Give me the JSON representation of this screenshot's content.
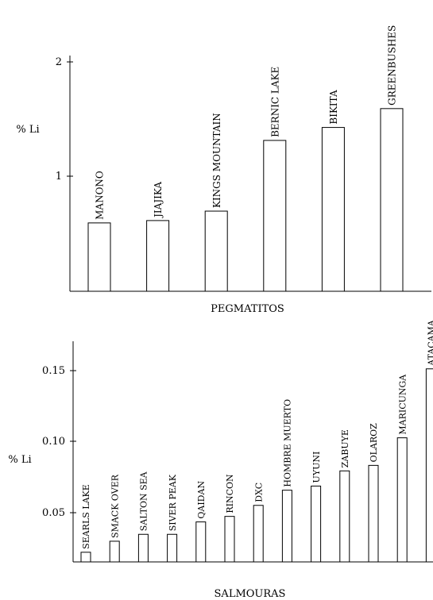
{
  "chart_data": [
    {
      "type": "bar",
      "ylabel": "% Li",
      "xlabel": "PEGMATITOS",
      "ylim": [
        0,
        2
      ],
      "yticks": [
        "1",
        "2"
      ],
      "categories": [
        "MANONO",
        "JIAJIKA",
        "KINGS MOUNTAIN",
        "BERNIC LAKE",
        "BIKITA",
        "GREENBUSHES"
      ],
      "values": [
        0.58,
        0.6,
        0.68,
        1.28,
        1.39,
        1.55
      ]
    },
    {
      "type": "bar",
      "ylabel": "% Li",
      "xlabel": "SALMOURAS",
      "ylim": [
        0,
        0.16
      ],
      "yticks": [
        "0.05",
        "0.10",
        "0.15"
      ],
      "categories": [
        "SEARLS LAKE",
        "SMACK OVER",
        "SALTON SEA",
        "SIVER PEAK",
        "QAIDAN",
        "RINCON",
        "DXC",
        "HOMBRE MUERTO",
        "UYUNI",
        "ZABUYE",
        "OLAROZ",
        "MARICUNGA",
        "ATACAMA"
      ],
      "values": [
        0.007,
        0.015,
        0.02,
        0.02,
        0.029,
        0.033,
        0.041,
        0.052,
        0.055,
        0.066,
        0.07,
        0.09,
        0.14
      ]
    }
  ]
}
